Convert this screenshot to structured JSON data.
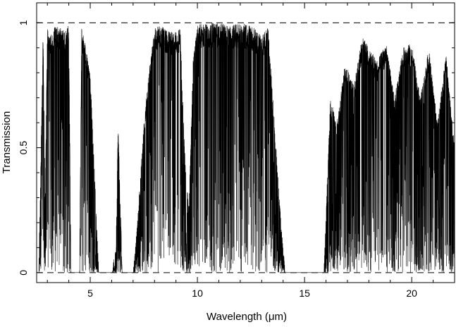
{
  "chart_data": {
    "type": "line",
    "title": "",
    "xlabel": "Wavelength (μm)",
    "ylabel": "Transmission",
    "xlim": [
      2.5,
      22
    ],
    "ylim": [
      -0.04,
      1.08
    ],
    "x_ticks": [
      5,
      10,
      15,
      20
    ],
    "y_ticks": [
      0,
      0.5,
      1
    ],
    "x_tick_labels": [
      "5",
      "10",
      "15",
      "20"
    ],
    "y_tick_labels": [
      "0",
      "0.5",
      "1"
    ],
    "reference_lines": [
      0,
      1
    ],
    "grid": false,
    "legend": "none",
    "line_color": "#000000",
    "series": [
      {
        "x": [
          2.6,
          2.8,
          2.9,
          3.0,
          3.2,
          3.4,
          3.6,
          3.8,
          4.0,
          4.1,
          4.2,
          4.3,
          4.5,
          4.6,
          4.7,
          4.8,
          5.0,
          5.2,
          5.4,
          5.5,
          5.7,
          6.0,
          6.2,
          6.3,
          6.5,
          6.8,
          7.0,
          7.2,
          7.5,
          7.8,
          8.0,
          8.3,
          8.6,
          8.9,
          9.2,
          9.4,
          9.6,
          9.8,
          10.0,
          10.3,
          10.6,
          11.0,
          11.5,
          12.0,
          12.5,
          13.0,
          13.3,
          13.6,
          13.9,
          14.1,
          14.5,
          15.0,
          15.5,
          15.9,
          16.2,
          16.5,
          16.9,
          17.3,
          17.7,
          18.0,
          18.4,
          18.8,
          19.2,
          19.6,
          20.0,
          20.4,
          20.8,
          21.2,
          21.6,
          22.0
        ],
        "y": [
          0.0,
          0.98,
          0.3,
          0.99,
          0.95,
          1.0,
          0.98,
          0.97,
          1.0,
          0.0,
          0.0,
          0.0,
          0.0,
          0.98,
          0.95,
          0.9,
          0.8,
          0.4,
          0.0,
          0.0,
          0.0,
          0.0,
          0.1,
          0.6,
          0.0,
          0.0,
          0.0,
          0.2,
          0.6,
          0.85,
          0.98,
          0.99,
          0.97,
          0.96,
          0.98,
          0.5,
          0.25,
          0.85,
          0.99,
          1.0,
          1.0,
          1.0,
          0.99,
          1.0,
          0.99,
          0.95,
          0.98,
          0.6,
          0.2,
          0.0,
          0.0,
          0.0,
          0.0,
          0.0,
          0.7,
          0.6,
          0.85,
          0.75,
          0.95,
          0.9,
          0.85,
          0.92,
          0.7,
          0.9,
          0.92,
          0.7,
          0.9,
          0.6,
          0.88,
          0.5
        ]
      }
    ]
  }
}
